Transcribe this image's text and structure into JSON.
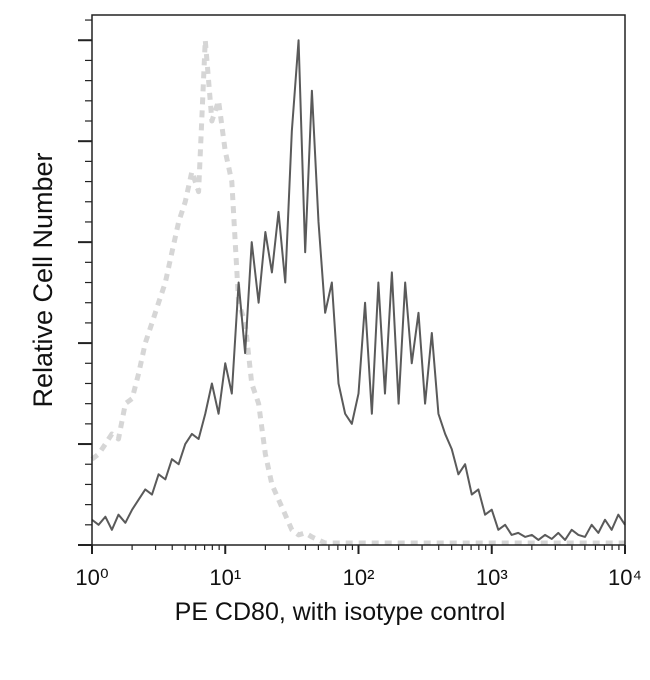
{
  "chart_data": {
    "type": "line",
    "xlabel": "PE CD80, with isotype control",
    "ylabel": "Relative Cell Number",
    "xscale": "log",
    "xlim": [
      1,
      10000
    ],
    "xticks": [
      {
        "value": 1,
        "label": "10⁰"
      },
      {
        "value": 10,
        "label": "10¹"
      },
      {
        "value": 100,
        "label": "10²"
      },
      {
        "value": 1000,
        "label": "10³"
      },
      {
        "value": 10000,
        "label": "10⁴"
      }
    ],
    "xminorticks": [
      2,
      3,
      4,
      5,
      6,
      7,
      8,
      9,
      20,
      30,
      40,
      50,
      60,
      70,
      80,
      90,
      200,
      300,
      400,
      500,
      600,
      700,
      800,
      900,
      2000,
      3000,
      4000,
      5000,
      6000,
      7000,
      8000,
      9000
    ],
    "ylim": [
      0,
      5.25
    ],
    "yticks": [
      0,
      1,
      2,
      3,
      4,
      5
    ],
    "yminorticks": [
      0.2,
      0.4,
      0.6,
      0.8,
      1.2,
      1.4,
      1.6,
      1.8,
      2.2,
      2.4,
      2.6,
      2.8,
      3.2,
      3.4,
      3.6,
      3.8,
      4.2,
      4.4,
      4.6,
      4.8,
      5.2
    ],
    "x": [
      1,
      1.12,
      1.26,
      1.41,
      1.58,
      1.78,
      2,
      2.24,
      2.51,
      2.82,
      3.16,
      3.55,
      3.98,
      4.47,
      5.01,
      5.62,
      6.31,
      7.08,
      7.94,
      8.91,
      10,
      11.2,
      12.6,
      14.1,
      15.8,
      17.8,
      20,
      22.4,
      25.1,
      28.2,
      31.6,
      35.5,
      39.8,
      44.7,
      50.1,
      56.2,
      63.1,
      70.8,
      79.4,
      89.1,
      100,
      112,
      126,
      141,
      158,
      178,
      200,
      224,
      251,
      282,
      316,
      355,
      398,
      447,
      501,
      562,
      631,
      708,
      794,
      891,
      1000,
      1120,
      1260,
      1410,
      1580,
      1780,
      2000,
      2240,
      2510,
      2820,
      3160,
      3550,
      3980,
      4470,
      5010,
      5620,
      6310,
      7080,
      7940,
      8910,
      10000
    ],
    "series": [
      {
        "color": "#d6d6d6",
        "dashed": true,
        "values": [
          0.85,
          0.9,
          1.0,
          1.1,
          1.05,
          1.4,
          1.45,
          1.7,
          2.0,
          2.2,
          2.4,
          2.6,
          2.9,
          3.2,
          3.4,
          3.7,
          3.5,
          5.0,
          4.2,
          4.4,
          3.9,
          3.6,
          2.4,
          2.2,
          1.6,
          1.4,
          0.9,
          0.6,
          0.45,
          0.3,
          0.15,
          0.1,
          0.12,
          0.08,
          0.05,
          0.02,
          0.02,
          0.02,
          0.02,
          0.02,
          0.02,
          0.02,
          0.02,
          0.02,
          0.02,
          0.02,
          0.02,
          0.02,
          0.02,
          0.02,
          0.02,
          0.02,
          0.02,
          0.02,
          0.02,
          0.02,
          0.02,
          0.02,
          0.02,
          0.02,
          0.02,
          0.02,
          0.02,
          0.02,
          0.02,
          0.02,
          0.02,
          0.02,
          0.02,
          0.02,
          0.02,
          0.02,
          0.02,
          0.02,
          0.02,
          0.02,
          0.02,
          0.02,
          0.02,
          0.02,
          0.02
        ]
      },
      {
        "color": "#5a5a5a",
        "dashed": false,
        "values": [
          0.25,
          0.2,
          0.28,
          0.15,
          0.3,
          0.22,
          0.35,
          0.45,
          0.55,
          0.5,
          0.7,
          0.65,
          0.85,
          0.8,
          1.0,
          1.1,
          1.05,
          1.3,
          1.6,
          1.3,
          1.8,
          1.5,
          2.6,
          1.9,
          3.0,
          2.4,
          3.1,
          2.7,
          3.3,
          2.6,
          4.1,
          5.0,
          2.9,
          4.5,
          3.2,
          2.3,
          2.6,
          1.6,
          1.3,
          1.2,
          1.5,
          2.4,
          1.3,
          2.6,
          1.5,
          2.7,
          1.4,
          2.6,
          1.8,
          2.3,
          1.4,
          2.1,
          1.3,
          1.1,
          0.95,
          0.7,
          0.8,
          0.5,
          0.55,
          0.3,
          0.35,
          0.15,
          0.2,
          0.1,
          0.12,
          0.08,
          0.1,
          0.05,
          0.1,
          0.06,
          0.12,
          0.05,
          0.15,
          0.1,
          0.08,
          0.2,
          0.12,
          0.25,
          0.15,
          0.3,
          0.2
        ]
      }
    ]
  }
}
